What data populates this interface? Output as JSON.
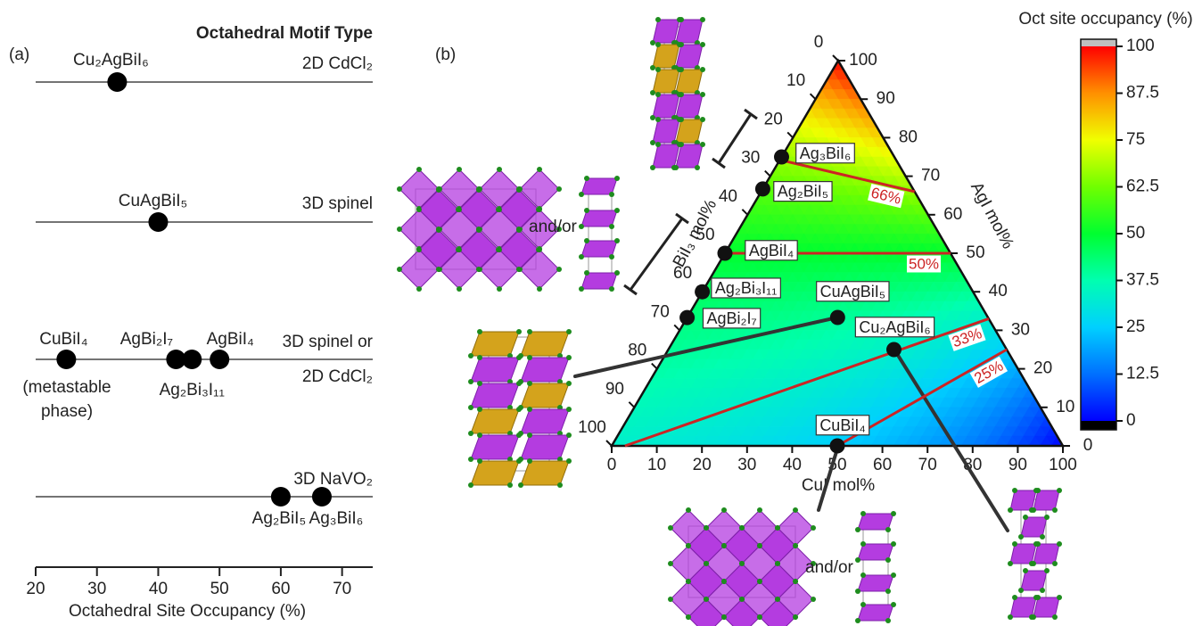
{
  "chart_data": [
    {
      "type": "strip",
      "panel": "(a)",
      "title": "Octahedral Motif Type",
      "xlabel": "Octahedral Site Occupancy (%)",
      "xlim": [
        20,
        75
      ],
      "xticks": [
        20,
        30,
        40,
        50,
        60,
        70
      ],
      "color": "#000000",
      "rows": [
        {
          "motif": [
            "2D CdCl₂"
          ],
          "points": [
            {
              "label": "Cu₂AgBiI₆",
              "value": 33.3
            }
          ]
        },
        {
          "motif": [
            "3D spinel"
          ],
          "points": [
            {
              "label": "CuAgBiI₅",
              "value": 40
            }
          ]
        },
        {
          "motif": [
            "3D spinel or",
            "2D CdCl₂"
          ],
          "points": [
            {
              "label": "CuBiI₄",
              "value": 25
            },
            {
              "label": "AgBi₂I₇",
              "value": 42.9
            },
            {
              "label": "Ag₂Bi₃I₁₁",
              "value": 45.5
            },
            {
              "label": "AgBiI₄",
              "value": 50
            }
          ]
        },
        {
          "motif": [
            "3D NaVO₂"
          ],
          "points": [
            {
              "label": "Ag₂BiI₅",
              "value": 60
            },
            {
              "label": "Ag₃BiI₆",
              "value": 66.7
            }
          ]
        }
      ],
      "note": [
        "(metastable",
        "phase)"
      ]
    },
    {
      "type": "ternary",
      "panel": "(b)",
      "bottom_axis": {
        "label": "CuI mol%",
        "lim": [
          0,
          100
        ],
        "ticks": [
          0,
          10,
          20,
          30,
          40,
          50,
          60,
          70,
          80,
          90,
          100
        ]
      },
      "right_axis": {
        "label": "AgI mol%",
        "lim": [
          0,
          100
        ],
        "ticks": [
          0,
          10,
          20,
          30,
          40,
          50,
          60,
          70,
          80,
          90,
          100
        ]
      },
      "left_axis": {
        "label": "BiI₃ mol%",
        "lim": [
          0,
          100
        ],
        "ticks": [
          0,
          10,
          20,
          30,
          40,
          50,
          60,
          70,
          80,
          90,
          100
        ]
      },
      "point_color": "#111111",
      "points": [
        {
          "label": "Ag₃BiI₆",
          "CuI": 0,
          "AgI": 75,
          "BiI3": 25
        },
        {
          "label": "Ag₂BiI₅",
          "CuI": 0,
          "AgI": 66.7,
          "BiI3": 33.3
        },
        {
          "label": "AgBiI₄",
          "CuI": 0,
          "AgI": 50,
          "BiI3": 50
        },
        {
          "label": "Ag₂Bi₃I₁₁",
          "CuI": 0,
          "AgI": 40,
          "BiI3": 60
        },
        {
          "label": "AgBi₂I₇",
          "CuI": 0,
          "AgI": 33.3,
          "BiI3": 66.7
        },
        {
          "label": "CuAgBiI₅",
          "CuI": 33.3,
          "AgI": 33.3,
          "BiI3": 33.3
        },
        {
          "label": "Cu₂AgBiI₆",
          "CuI": 50,
          "AgI": 25,
          "BiI3": 25
        },
        {
          "label": "CuBiI₄",
          "CuI": 50,
          "AgI": 0,
          "BiI3": 50
        }
      ],
      "contours": {
        "values": [
          66,
          50,
          33,
          25
        ],
        "value_labels": [
          "66%",
          "50%",
          "33%",
          "25%"
        ],
        "color": "#cc2424"
      },
      "colorbar": {
        "title": "Oct site occupancy (%)",
        "lim": [
          0,
          100
        ],
        "ticks": [
          0,
          12.5,
          25,
          37.5,
          50,
          62.5,
          75,
          87.5,
          100
        ],
        "colormap": [
          "#0000ff",
          "#0070ff",
          "#00d0ff",
          "#00ffb0",
          "#00ff30",
          "#70ff00",
          "#f0ff00",
          "#ff9000",
          "#ff0000"
        ],
        "under": "#000000",
        "over": "#bfbfbf"
      },
      "annotations": [
        "and/or",
        "and/or"
      ]
    }
  ]
}
